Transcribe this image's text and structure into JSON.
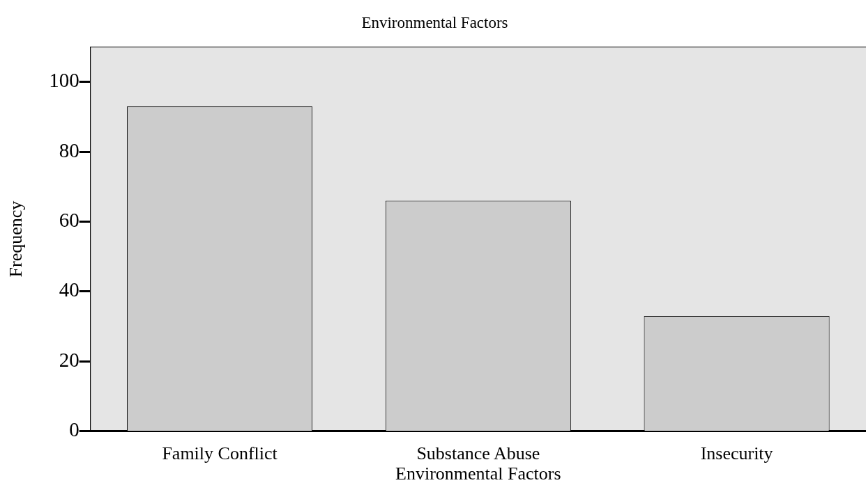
{
  "chart_data": {
    "type": "bar",
    "title": "Environmental Factors",
    "xlabel": "Environmental Factors",
    "ylabel": "Frequency",
    "categories": [
      "Family Conflict",
      "Substance Abuse",
      "Insecurity"
    ],
    "values": [
      93,
      66,
      33
    ],
    "color": "#cccccc",
    "ylim": [
      0,
      110
    ],
    "yticks": [
      0,
      20,
      40,
      60,
      80,
      100
    ],
    "grid": false,
    "legend": false
  }
}
